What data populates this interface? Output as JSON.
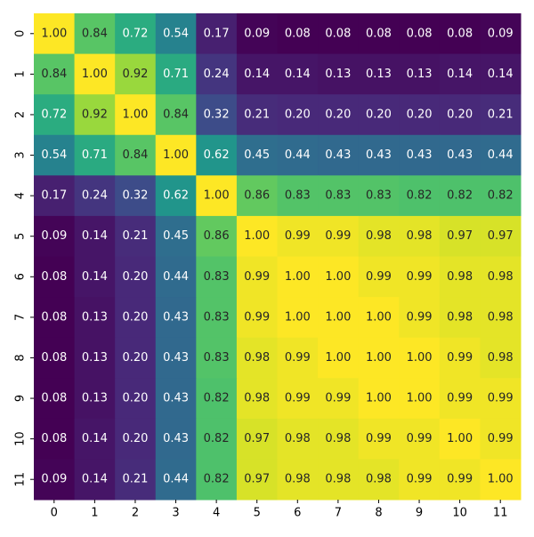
{
  "chart_data": {
    "type": "heatmap",
    "colormap": "viridis",
    "x_categories": [
      "0",
      "1",
      "2",
      "3",
      "4",
      "5",
      "6",
      "7",
      "8",
      "9",
      "10",
      "11"
    ],
    "y_categories": [
      "0",
      "1",
      "2",
      "3",
      "4",
      "5",
      "6",
      "7",
      "8",
      "9",
      "10",
      "11"
    ],
    "values": [
      [
        1.0,
        0.84,
        0.72,
        0.54,
        0.17,
        0.09,
        0.08,
        0.08,
        0.08,
        0.08,
        0.08,
        0.09
      ],
      [
        0.84,
        1.0,
        0.92,
        0.71,
        0.24,
        0.14,
        0.14,
        0.13,
        0.13,
        0.13,
        0.14,
        0.14
      ],
      [
        0.72,
        0.92,
        1.0,
        0.84,
        0.32,
        0.21,
        0.2,
        0.2,
        0.2,
        0.2,
        0.2,
        0.21
      ],
      [
        0.54,
        0.71,
        0.84,
        1.0,
        0.62,
        0.45,
        0.44,
        0.43,
        0.43,
        0.43,
        0.43,
        0.44
      ],
      [
        0.17,
        0.24,
        0.32,
        0.62,
        1.0,
        0.86,
        0.83,
        0.83,
        0.83,
        0.82,
        0.82,
        0.82
      ],
      [
        0.09,
        0.14,
        0.21,
        0.45,
        0.86,
        1.0,
        0.99,
        0.99,
        0.98,
        0.98,
        0.97,
        0.97
      ],
      [
        0.08,
        0.14,
        0.2,
        0.44,
        0.83,
        0.99,
        1.0,
        1.0,
        0.99,
        0.99,
        0.98,
        0.98
      ],
      [
        0.08,
        0.13,
        0.2,
        0.43,
        0.83,
        0.99,
        1.0,
        1.0,
        1.0,
        0.99,
        0.98,
        0.98
      ],
      [
        0.08,
        0.13,
        0.2,
        0.43,
        0.83,
        0.98,
        0.99,
        1.0,
        1.0,
        1.0,
        0.99,
        0.98
      ],
      [
        0.08,
        0.13,
        0.2,
        0.43,
        0.82,
        0.98,
        0.99,
        0.99,
        1.0,
        1.0,
        0.99,
        0.99
      ],
      [
        0.08,
        0.14,
        0.2,
        0.43,
        0.82,
        0.97,
        0.98,
        0.98,
        0.99,
        0.99,
        1.0,
        0.99
      ],
      [
        0.09,
        0.14,
        0.21,
        0.44,
        0.82,
        0.97,
        0.98,
        0.98,
        0.98,
        0.99,
        0.99,
        1.0
      ]
    ],
    "value_labels": [
      [
        "1.00",
        "0.84",
        "0.72",
        "0.54",
        "0.17",
        "0.09",
        "0.08",
        "0.08",
        "0.08",
        "0.08",
        "0.08",
        "0.09"
      ],
      [
        "0.84",
        "1.00",
        "0.92",
        "0.71",
        "0.24",
        "0.14",
        "0.14",
        "0.13",
        "0.13",
        "0.13",
        "0.14",
        "0.14"
      ],
      [
        "0.72",
        "0.92",
        "1.00",
        "0.84",
        "0.32",
        "0.21",
        "0.20",
        "0.20",
        "0.20",
        "0.20",
        "0.20",
        "0.21"
      ],
      [
        "0.54",
        "0.71",
        "0.84",
        "1.00",
        "0.62",
        "0.45",
        "0.44",
        "0.43",
        "0.43",
        "0.43",
        "0.43",
        "0.44"
      ],
      [
        "0.17",
        "0.24",
        "0.32",
        "0.62",
        "1.00",
        "0.86",
        "0.83",
        "0.83",
        "0.83",
        "0.82",
        "0.82",
        "0.82"
      ],
      [
        "0.09",
        "0.14",
        "0.21",
        "0.45",
        "0.86",
        "1.00",
        "0.99",
        "0.99",
        "0.98",
        "0.98",
        "0.97",
        "0.97"
      ],
      [
        "0.08",
        "0.14",
        "0.20",
        "0.44",
        "0.83",
        "0.99",
        "1.00",
        "1.00",
        "0.99",
        "0.99",
        "0.98",
        "0.98"
      ],
      [
        "0.08",
        "0.13",
        "0.20",
        "0.43",
        "0.83",
        "0.99",
        "1.00",
        "1.00",
        "1.00",
        "0.99",
        "0.98",
        "0.98"
      ],
      [
        "0.08",
        "0.13",
        "0.20",
        "0.43",
        "0.83",
        "0.98",
        "0.99",
        "1.00",
        "1.00",
        "1.00",
        "0.99",
        "0.98"
      ],
      [
        "0.08",
        "0.13",
        "0.20",
        "0.43",
        "0.82",
        "0.98",
        "0.99",
        "0.99",
        "1.00",
        "1.00",
        "0.99",
        "0.99"
      ],
      [
        "0.08",
        "0.14",
        "0.20",
        "0.43",
        "0.82",
        "0.97",
        "0.98",
        "0.98",
        "0.99",
        "0.99",
        "1.00",
        "0.99"
      ],
      [
        "0.09",
        "0.14",
        "0.21",
        "0.44",
        "0.82",
        "0.97",
        "0.98",
        "0.98",
        "0.98",
        "0.99",
        "0.99",
        "1.00"
      ]
    ]
  }
}
